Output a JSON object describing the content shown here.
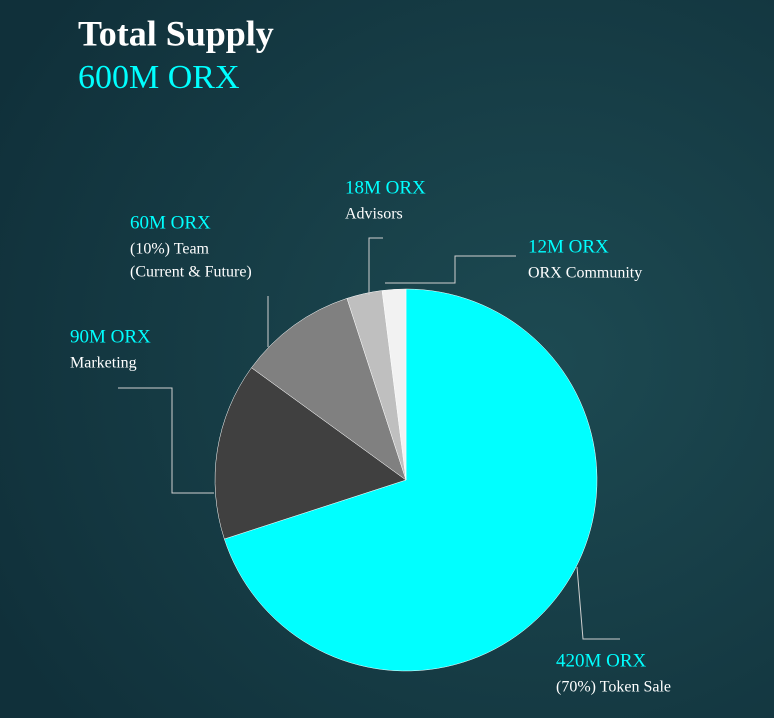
{
  "chart_data": {
    "type": "pie",
    "title": "Total Supply",
    "subtitle": "600M ORX",
    "categories": [
      [
        "(70%) Token Sale"
      ],
      [
        "Marketing"
      ],
      [
        "(10%) Team",
        "(Current & Future)"
      ],
      [
        "Advisors"
      ],
      [
        "ORX Community"
      ]
    ],
    "values": [
      420,
      90,
      60,
      18,
      12
    ],
    "value_labels": [
      "420M ORX",
      "90M ORX",
      "60M ORX",
      "18M ORX",
      "12M ORX"
    ],
    "colors": [
      "#00ffff",
      "#404040",
      "#808080",
      "#bfbfbf",
      "#f2f2f2"
    ]
  }
}
